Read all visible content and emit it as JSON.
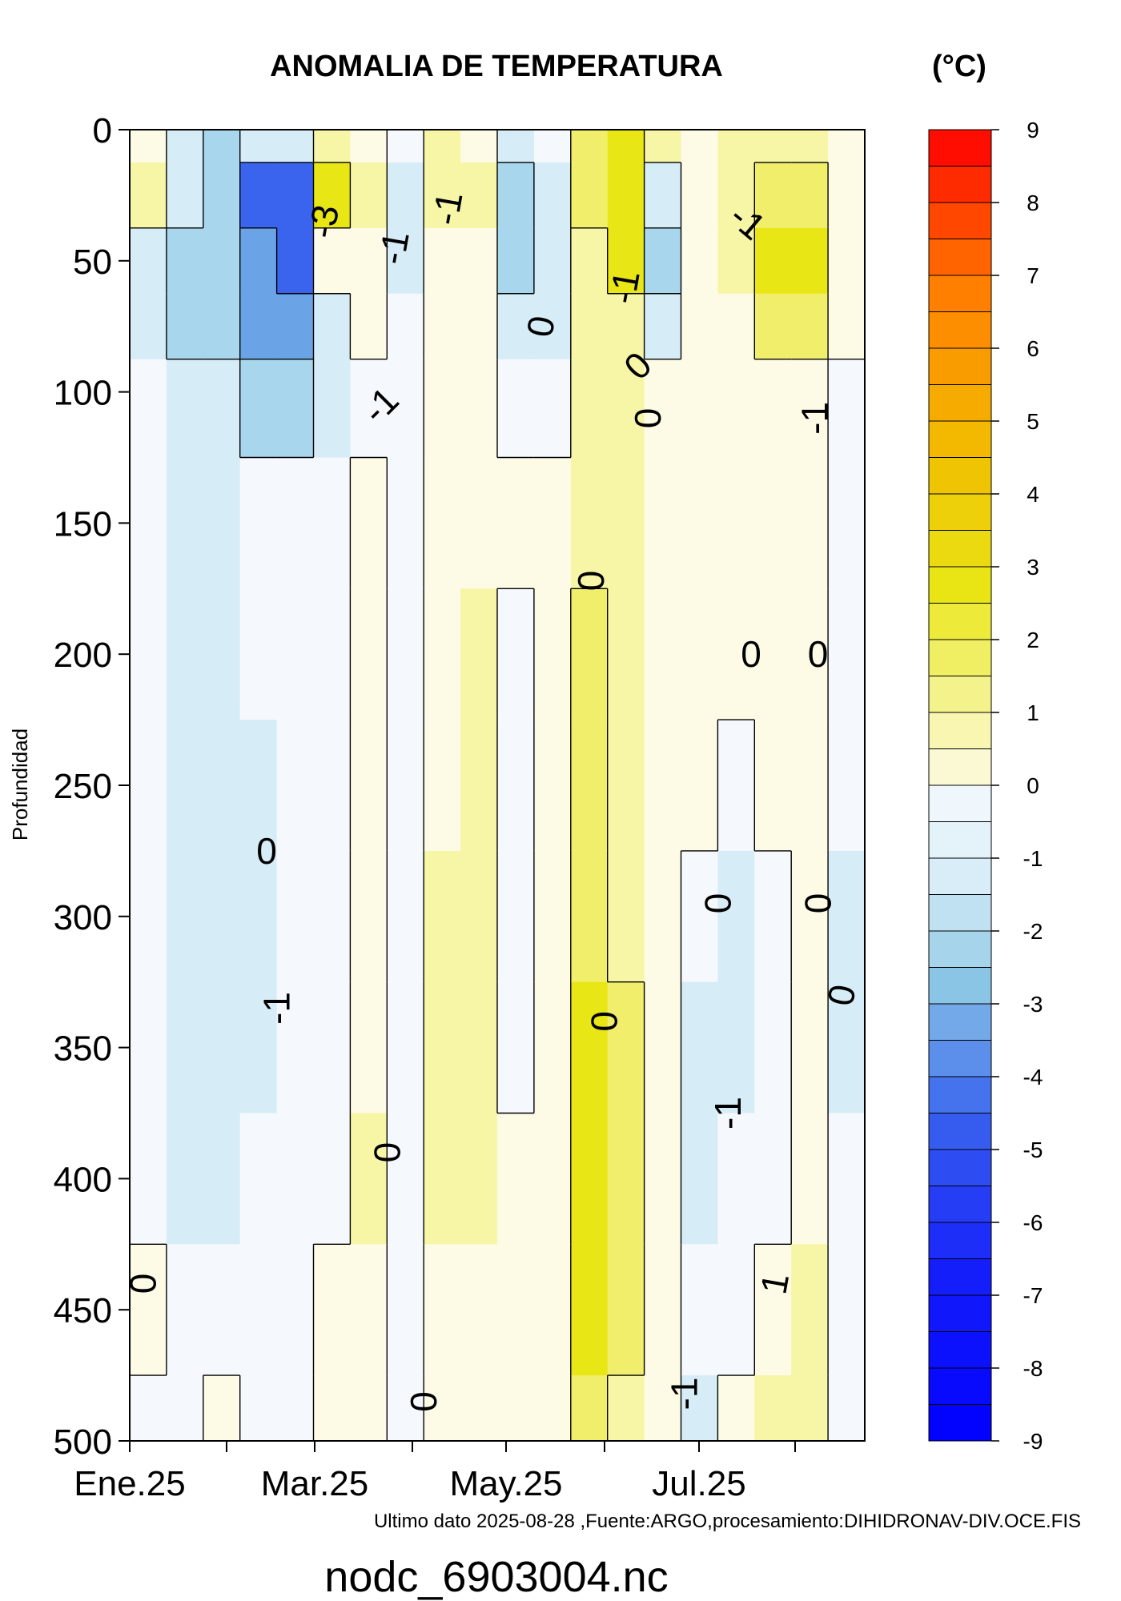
{
  "chart_data": {
    "type": "heatmap",
    "title": "ANOMALIA DE TEMPERATURA",
    "unit_label": "(°C)",
    "ylabel": "Profundidad",
    "xlabel": "",
    "ylim": [
      500,
      0
    ],
    "y_ticks": [
      0,
      50,
      100,
      150,
      200,
      250,
      300,
      350,
      400,
      450,
      500
    ],
    "x_tick_labels": [
      "Ene.25",
      "Mar.25",
      "May.25",
      "Jul.25"
    ],
    "colorbar": {
      "min": -9,
      "max": 9,
      "step": 0.5,
      "tick_labels": [
        9,
        8,
        7,
        6,
        5,
        4,
        3,
        2,
        1,
        0,
        -1,
        -2,
        -3,
        -4,
        -5,
        -6,
        -7,
        -8,
        -9
      ],
      "colors": {
        "neg_0": "#f5f9fd",
        "neg_1": "#d6ecf6",
        "neg_2": "#a8d6ec",
        "neg_3": "#6aa4e6",
        "neg_4": "#3a64ee",
        "neg_9": "#0000ff",
        "pos_0": "#fdfbe6",
        "pos_1": "#f7f5a6",
        "pos_2": "#f1ee6b",
        "pos_3": "#e9e616",
        "pos_4": "#f0c000",
        "pos_6": "#ff8000",
        "pos_9": "#ff0000"
      }
    },
    "depth_levels": [
      0,
      25,
      50,
      75,
      100,
      150,
      200,
      250,
      300,
      350,
      400,
      450,
      500
    ],
    "time_columns": [
      "Ene.25",
      "",
      "",
      "",
      "",
      "Mar.25",
      "",
      "",
      "",
      "",
      "May.25",
      "",
      "",
      "",
      "",
      "Jul.25",
      "",
      "",
      "",
      ""
    ],
    "values": [
      [
        0.3,
        -0.5,
        -1.0,
        -0.8,
        -0.5,
        0.6,
        0.3,
        -0.3,
        0.5,
        0.4,
        -0.5,
        -0.2,
        1.2,
        1.6,
        0.8,
        0.2,
        0.8,
        0.6,
        0.6,
        0.4
      ],
      [
        0.5,
        -0.8,
        -1.8,
        -3.0,
        -4.0,
        1.5,
        0.6,
        -0.5,
        0.8,
        0.6,
        -1.0,
        -0.7,
        1.3,
        2.3,
        -0.8,
        0.3,
        0.8,
        1.3,
        1.2,
        0.3
      ],
      [
        -0.6,
        -1.2,
        -1.7,
        -2.5,
        -3.2,
        0.2,
        0.3,
        -0.8,
        0.3,
        0.3,
        -1.2,
        -0.8,
        0.7,
        1.6,
        -1.0,
        0.3,
        0.5,
        1.8,
        2.0,
        0.2
      ],
      [
        -0.8,
        -1.0,
        -1.3,
        -2.0,
        -2.3,
        -0.6,
        0.2,
        -0.4,
        0.1,
        0.3,
        -0.6,
        -0.5,
        0.6,
        0.7,
        -0.5,
        0.2,
        0.4,
        1.0,
        1.2,
        0.2
      ],
      [
        -0.4,
        -0.5,
        -0.7,
        -1.0,
        -1.0,
        -0.5,
        -0.1,
        -0.2,
        0.1,
        0.2,
        -0.3,
        -0.1,
        0.7,
        0.5,
        0.2,
        0.3,
        0.3,
        0.4,
        0.4,
        -0.2
      ],
      [
        -0.3,
        -0.5,
        -0.5,
        -0.4,
        -0.4,
        -0.3,
        0.2,
        -0.1,
        0.1,
        0.3,
        0.2,
        0.4,
        0.7,
        0.6,
        0.3,
        0.4,
        0.3,
        0.3,
        0.2,
        -0.2
      ],
      [
        -0.2,
        -0.5,
        -0.5,
        -0.4,
        -0.4,
        -0.3,
        0.3,
        -0.1,
        0.4,
        0.5,
        -0.1,
        0.3,
        1.2,
        0.9,
        0.4,
        0.2,
        0.3,
        0.3,
        0.2,
        -0.1
      ],
      [
        -0.2,
        -0.6,
        -0.5,
        -0.5,
        -0.4,
        -0.4,
        0.3,
        -0.1,
        0.4,
        0.6,
        -0.1,
        0.3,
        1.3,
        0.8,
        0.4,
        0.2,
        -0.2,
        0.2,
        0.2,
        -0.2
      ],
      [
        -0.3,
        -0.8,
        -0.6,
        -0.5,
        -0.4,
        -0.4,
        0.4,
        -0.1,
        0.5,
        0.5,
        -0.2,
        0.3,
        1.4,
        0.8,
        0.4,
        -0.4,
        -0.5,
        -0.2,
        0.2,
        -0.7
      ],
      [
        -0.3,
        -0.9,
        -0.7,
        -0.5,
        -0.4,
        -0.3,
        0.4,
        -0.1,
        0.6,
        0.5,
        -0.2,
        0.3,
        1.5,
        1.1,
        0.4,
        -0.6,
        -0.5,
        -0.3,
        0.2,
        -0.9
      ],
      [
        -0.2,
        -0.6,
        -0.5,
        -0.4,
        -0.3,
        -0.3,
        0.5,
        -0.1,
        0.6,
        0.5,
        0.2,
        0.2,
        1.6,
        1.3,
        0.4,
        -0.8,
        -0.2,
        -0.2,
        0.3,
        -0.4
      ],
      [
        0.3,
        -0.4,
        -0.4,
        -0.3,
        -0.2,
        0.2,
        0.4,
        -0.1,
        0.3,
        0.4,
        0.2,
        0.3,
        1.6,
        1.0,
        0.3,
        -0.4,
        -0.1,
        0.3,
        0.5,
        -0.3
      ],
      [
        -0.2,
        -0.3,
        0.3,
        -0.2,
        -0.2,
        0.3,
        0.4,
        -0.1,
        0.3,
        0.4,
        0.2,
        0.3,
        1.3,
        0.8,
        0.3,
        -0.5,
        0.2,
        0.5,
        0.5,
        -0.4
      ]
    ],
    "contour_labels": [
      "-3",
      "0",
      "-1",
      "-1",
      "-1",
      "-1",
      "-1",
      "0",
      "0",
      "-1",
      "0",
      "0",
      "-1",
      "0",
      "0",
      "0",
      "0",
      "0",
      "-1",
      "-1",
      "0",
      "1",
      "0",
      "0",
      "0"
    ]
  },
  "footer": "Ultimo dato 2025-08-28 ,Fuente:ARGO,procesamiento:DIHIDRONAV-DIV.OCE.FIS",
  "filename": "nodc_6903004.nc"
}
